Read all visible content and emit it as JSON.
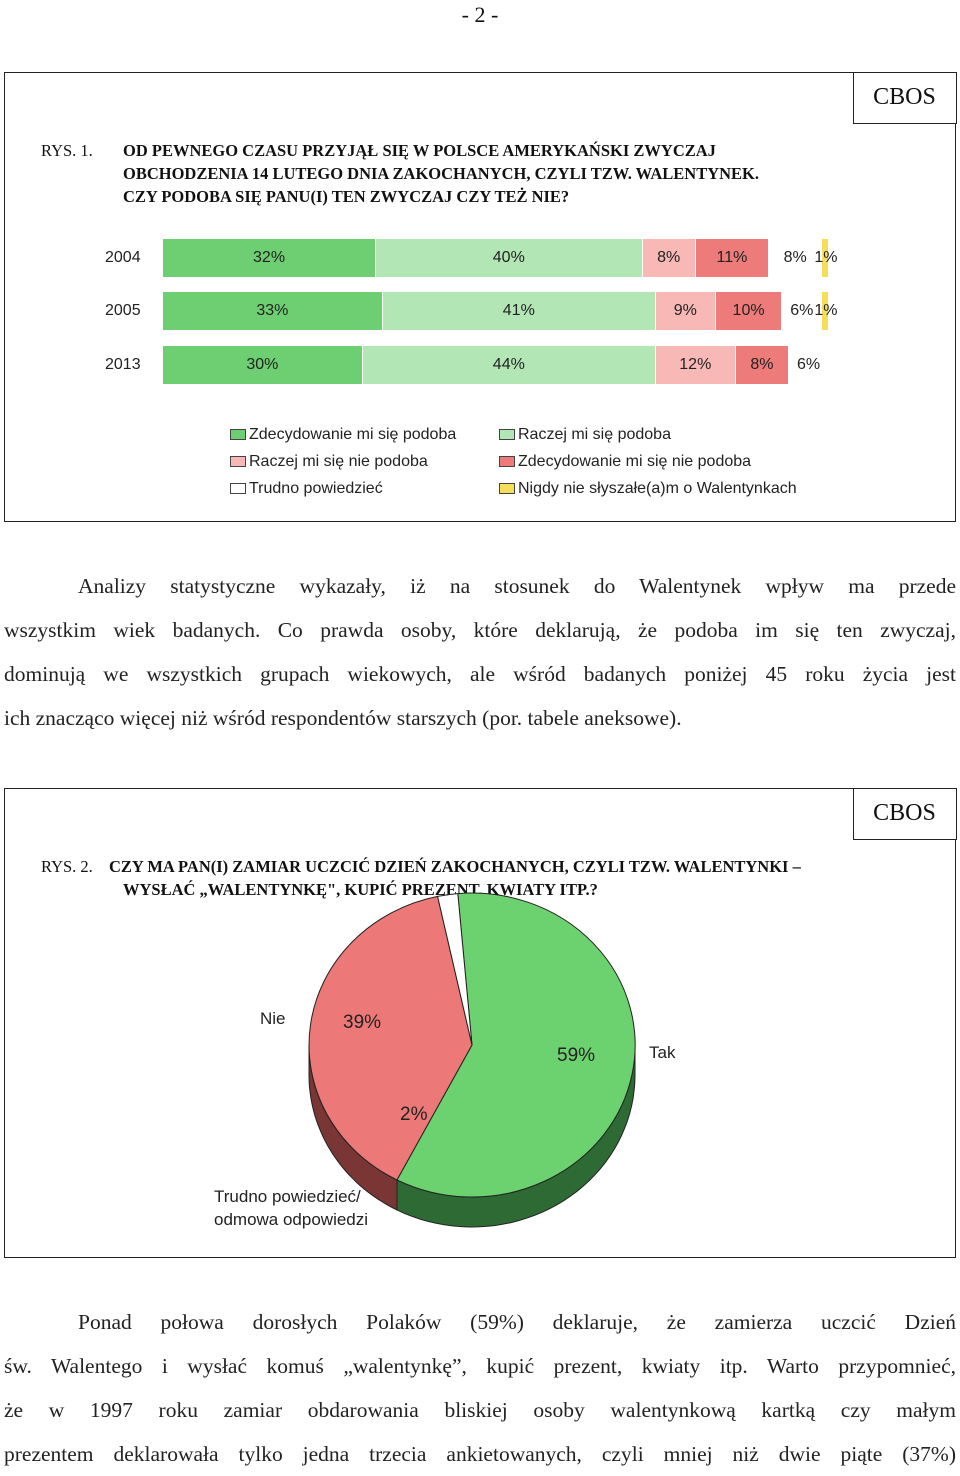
{
  "page": {
    "number": "- 2 -"
  },
  "figure1": {
    "cbos": "CBOS",
    "label": "RYS. 1.",
    "title_lines": [
      "OD PEWNEGO CZASU PRZYJĄŁ SIĘ W POLSCE AMERYKAŃSKI ZWYCZAJ",
      "OBCHODZENIA 14 LUTEGO DNIA ZAKOCHANYCH, CZYLI TZW. WALENTYNEK.",
      "CZY PODOBA SIĘ PANU(I) TEN ZWYCZAJ CZY TEŻ NIE?"
    ],
    "legend": [
      "Zdecydowanie mi się podoba",
      "Raczej mi się podoba",
      "Raczej mi się nie podoba",
      "Zdecydowanie mi się nie podoba",
      "Trudno powiedzieć",
      "Nigdy nie słyszałe(a)m o Walentynkach"
    ]
  },
  "chart_data": [
    {
      "type": "bar",
      "orientation": "horizontal-stacked-100",
      "categories": [
        "2004",
        "2005",
        "2013"
      ],
      "series": [
        {
          "name": "Zdecydowanie mi się podoba",
          "values": [
            32,
            33,
            30
          ],
          "labels": [
            "32%",
            "33%",
            "30%"
          ],
          "color": "#6dcf72"
        },
        {
          "name": "Raczej mi się podoba",
          "values": [
            40,
            41,
            44
          ],
          "labels": [
            "40%",
            "41%",
            "44%"
          ],
          "color": "#b2e6b4"
        },
        {
          "name": "Raczej mi się nie podoba",
          "values": [
            8,
            9,
            12
          ],
          "labels": [
            "8%",
            "9%",
            "12%"
          ],
          "color": "#f7b8b6"
        },
        {
          "name": "Zdecydowanie mi się nie podoba",
          "values": [
            11,
            10,
            8
          ],
          "labels": [
            "11%",
            "10%",
            "8%"
          ],
          "color": "#ec7b7a"
        },
        {
          "name": "Trudno powiedzieć",
          "values": [
            8,
            6,
            6
          ],
          "labels": [
            "8%",
            "6%",
            "6%"
          ],
          "color": "#ffffff"
        },
        {
          "name": "Nigdy nie słyszałe(a)m o Walentynkach",
          "values": [
            1,
            1,
            0
          ],
          "labels": [
            "1%",
            "1%",
            ""
          ],
          "color": "#f5de5a"
        }
      ],
      "legend_position": "bottom"
    },
    {
      "type": "pie",
      "style": "3d",
      "slices": [
        {
          "name": "Tak",
          "value": 59,
          "label": "59%",
          "color": "#6cd16f",
          "side_color": "#2e6b34"
        },
        {
          "name": "Nie",
          "value": 39,
          "label": "39%",
          "color": "#ec7977",
          "side_color": "#7a3535"
        },
        {
          "name": "Trudno powiedzieć/ odmowa odpowiedzi",
          "value": 2,
          "label": "2%",
          "color": "#ffffff",
          "side_color": "#8a8a8a"
        }
      ]
    }
  ],
  "paragraph1": {
    "lines": [
      "Analizy statystyczne wykazały, iż na stosunek do Walentynek wpływ ma przede",
      "wszystkim wiek badanych. Co prawda osoby, które deklarują, że podoba im się ten zwyczaj,",
      "dominują we wszystkich grupach wiekowych, ale wśród badanych poniżej 45 roku życia jest",
      "ich znacząco więcej niż wśród respondentów starszych (por. tabele aneksowe)."
    ]
  },
  "figure2": {
    "cbos": "CBOS",
    "label": "RYS. 2.",
    "title_lines": [
      "CZY MA PAN(I) ZAMIAR UCZCIĆ DZIEŃ ZAKOCHANYCH, CZYLI TZW. WALENTYNKI –",
      "WYSŁAĆ „WALENTYNKĘ\", KUPIĆ PREZENT, KWIATY ITP.?"
    ],
    "label_nie": "Nie",
    "label_tak": "Tak",
    "label_trudno_1": "Trudno powiedzieć/",
    "label_trudno_2": "odmowa odpowiedzi"
  },
  "paragraph2": {
    "lines": [
      "Ponad połowa dorosłych Polaków (59%) deklaruje, że zamierza uczcić Dzień",
      "św. Walentego i wysłać komuś „walentynkę”, kupić prezent, kwiaty itp. Warto przypomnieć,",
      "że w 1997 roku zamiar obdarowania bliskiej osoby walentynkową kartką czy małym",
      "prezentem deklarowała tylko jedna trzecia ankietowanych, czyli mniej niż dwie piąte (37%)"
    ]
  }
}
